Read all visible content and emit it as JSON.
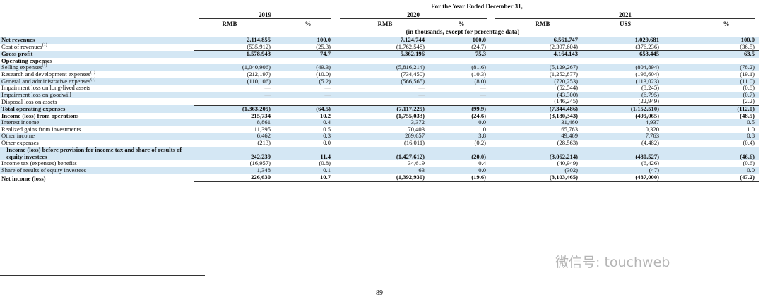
{
  "header": {
    "period": "For the Year Ended December 31,",
    "years": [
      "2019",
      "2020",
      "2021"
    ],
    "columns": [
      "RMB",
      "%",
      "RMB",
      "%",
      "RMB",
      "US$",
      "%"
    ],
    "units_note": "(in thousands, except for percentage data)"
  },
  "table": {
    "rows": [
      {
        "label": "Net revenues",
        "bold": true,
        "values": [
          "2,114,855",
          "100.0",
          "7,124,744",
          "100.0",
          "6,561,747",
          "1,029,681",
          "100.0"
        ]
      },
      {
        "label": "Cost of revenues",
        "note": "(1)",
        "values": [
          "(535,912)",
          "(25.3)",
          "(1,762,548)",
          "(24.7)",
          "(2,397,604)",
          "(376,236)",
          "(36.5)"
        ]
      },
      {
        "label": "Gross profit",
        "bold": true,
        "values": [
          "1,578,943",
          "74.7",
          "5,362,196",
          "75.3",
          "4,164,143",
          "653,445",
          "63.5"
        ]
      },
      {
        "label": "Operating expenses",
        "bold": true,
        "values": []
      },
      {
        "label": "Selling expenses",
        "note": "(1)",
        "values": [
          "(1,040,906)",
          "(49.3)",
          "(5,816,214)",
          "(81.6)",
          "(5,129,267)",
          "(804,894)",
          "(78.2)"
        ]
      },
      {
        "label": "Research and development expenses",
        "note": "(1)",
        "values": [
          "(212,197)",
          "(10.0)",
          "(734,450)",
          "(10.3)",
          "(1,252,877)",
          "(196,604)",
          "(19.1)"
        ]
      },
      {
        "label": "General and administrative expenses",
        "note": "(1)",
        "values": [
          "(110,106)",
          "(5.2)",
          "(566,565)",
          "(8.0)",
          "(720,253)",
          "(113,023)",
          "(11.0)"
        ]
      },
      {
        "label": "Impairment loss on long-lived assets",
        "values": [
          "—",
          "—",
          "—",
          "—",
          "(52,544)",
          "(8,245)",
          "(0.8)"
        ]
      },
      {
        "label": "Impairment loss on goodwill",
        "values": [
          "—",
          "—",
          "—",
          "—",
          "(43,300)",
          "(6,795)",
          "(0.7)"
        ]
      },
      {
        "label": "Disposal loss on assets",
        "values": [
          "—",
          "—",
          "—",
          "—",
          "(146,245)",
          "(22,949)",
          "(2.2)"
        ]
      },
      {
        "label": "Total operating expenses",
        "bold": true,
        "values": [
          "(1,363,209)",
          "(64.5)",
          "(7,117,229)",
          "(99.9)",
          "(7,344,486)",
          "(1,152,510)",
          "(112.0)"
        ]
      },
      {
        "label": "Income (loss) from operations",
        "bold": true,
        "values": [
          "215,734",
          "10.2",
          "(1,755,033)",
          "(24.6)",
          "(3,180,343)",
          "(499,065)",
          "(48.5)"
        ]
      },
      {
        "label": "Interest income",
        "values": [
          "8,861",
          "0.4",
          "3,372",
          "0.0",
          "31,460",
          "4,937",
          "0.5"
        ]
      },
      {
        "label": "Realized gains from investments",
        "values": [
          "11,395",
          "0.5",
          "70,403",
          "1.0",
          "65,763",
          "10,320",
          "1.0"
        ]
      },
      {
        "label": "Other income",
        "values": [
          "6,462",
          "0.3",
          "269,657",
          "3.8",
          "49,469",
          "7,763",
          "0.8"
        ]
      },
      {
        "label": "Other expenses",
        "values": [
          "(213)",
          "0.0",
          "(16,011)",
          "(0.2)",
          "(28,563)",
          "(4,482)",
          "(0.4)"
        ]
      },
      {
        "label": "Income (loss) before provision for income tax and share of results of equity investees",
        "bold": true,
        "values": [
          "242,239",
          "11.4",
          "(1,427,612)",
          "(20.0)",
          "(3,062,214)",
          "(480,527)",
          "(46.6)"
        ]
      },
      {
        "label": "Income tax (expenses) benefits",
        "values": [
          "(16,957)",
          "(0.8)",
          "34,619",
          "0.4",
          "(40,949)",
          "(6,426)",
          "(0.6)"
        ]
      },
      {
        "label": "Share of results of equity investees",
        "values": [
          "1,348",
          "0.1",
          "63",
          "0.0",
          "(302)",
          "(47)",
          "0.0"
        ]
      },
      {
        "label": "Net income (loss)",
        "bold": true,
        "values": [
          "226,630",
          "10.7",
          "(1,392,930)",
          "(19.6)",
          "(3,103,465)",
          "(487,000)",
          "(47.2)"
        ]
      }
    ]
  },
  "footer": {
    "page_number": "89"
  },
  "watermark": "微信号: touchweb"
}
